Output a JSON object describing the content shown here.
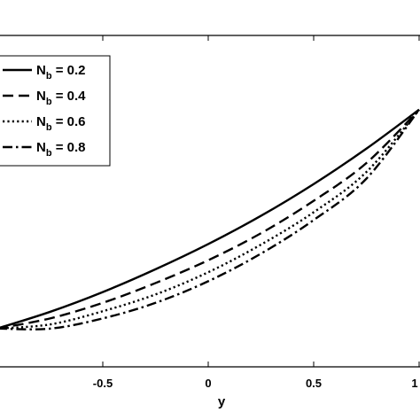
{
  "chart_data": {
    "type": "line",
    "title": "",
    "xlabel": "y",
    "ylabel": "",
    "xlim": [
      -1,
      1
    ],
    "grid": false,
    "legend_position": "top-left",
    "x_ticks": [
      "-0.5",
      "0",
      "0.5",
      "1"
    ],
    "x": [
      -1,
      -0.75,
      -0.5,
      -0.25,
      0,
      0.25,
      0.5,
      0.75,
      1
    ],
    "series": [
      {
        "name": "N_b = 0.2",
        "label_main": "N",
        "label_sub": "b",
        "label_rest": " = 0.2",
        "dash": "solid",
        "values": [
          0.1125,
          0.1849,
          0.2708,
          0.3698,
          0.4792,
          0.6016,
          0.7396,
          0.8932,
          1.0625
        ]
      },
      {
        "name": "N_b = 0.4",
        "label_main": "N",
        "label_sub": "b",
        "label_rest": " = 0.4",
        "dash": "dashed",
        "values": [
          0.1125,
          0.1563,
          0.224,
          0.3099,
          0.4089,
          0.526,
          0.6667,
          0.8307,
          1.0625
        ]
      },
      {
        "name": "N_b = 0.6",
        "label_main": "N",
        "label_sub": "b",
        "label_rest": " = 0.6",
        "dash": "dotted",
        "values": [
          0.1125,
          0.1302,
          0.1875,
          0.2604,
          0.3568,
          0.4766,
          0.6172,
          0.7917,
          1.0625
        ]
      },
      {
        "name": "N_b = 0.8",
        "label_main": "N",
        "label_sub": "b",
        "label_rest": " = 0.8",
        "dash": "dashdot",
        "values": [
          0.1125,
          0.112,
          0.1563,
          0.224,
          0.3177,
          0.4375,
          0.5833,
          0.763,
          1.0625
        ]
      }
    ],
    "ylim": [
      0,
      1.2
    ],
    "colors": {
      "line": "#000000",
      "background": "#ffffff"
    }
  }
}
